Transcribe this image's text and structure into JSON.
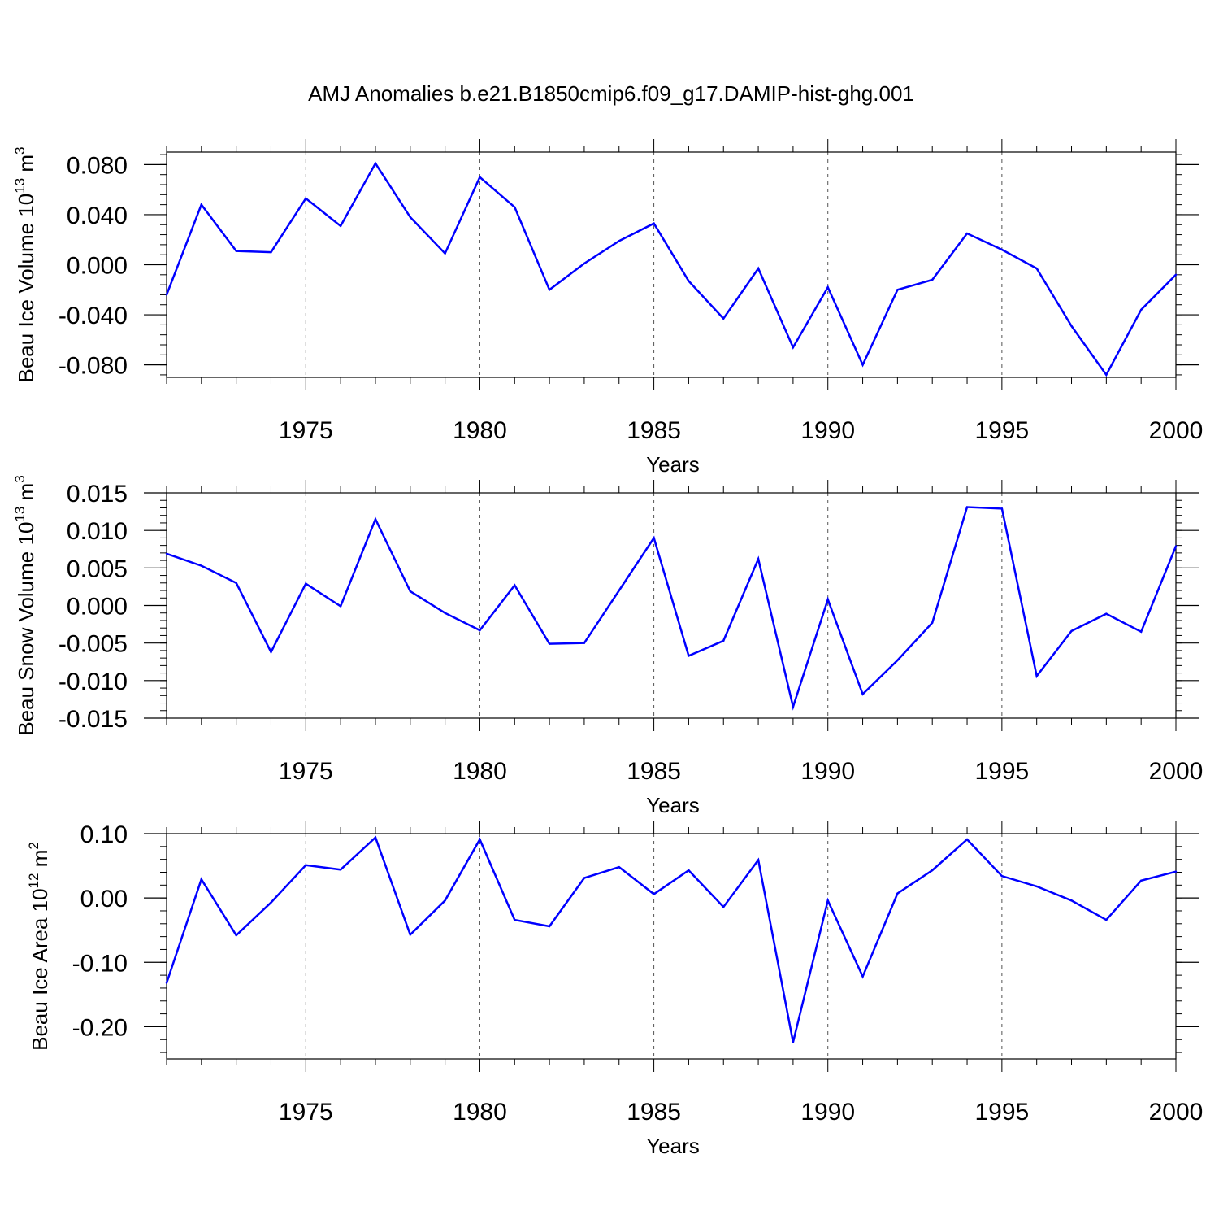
{
  "title": "AMJ Anomalies b.e21.B1850cmip6.f09_g17.DAMIP-hist-ghg.001",
  "colors": {
    "line": "#0000ff",
    "axis": "#000000",
    "grid": "#555555"
  },
  "chart_data": [
    {
      "type": "line",
      "ylabel_main": "Beau Ice Volume 10",
      "ylabel_exp": "13",
      "ylabel_unit": " m",
      "ylabel_unit_exp": "3",
      "xlabel": "Years",
      "xlim": [
        1971,
        2000
      ],
      "ylim": [
        -0.09,
        0.09
      ],
      "yticks": [
        -0.08,
        -0.04,
        0.0,
        0.04,
        0.08
      ],
      "ytick_labels": [
        "-0.080",
        "-0.040",
        "0.000",
        "0.040",
        "0.080"
      ],
      "yminor_step": 0.008,
      "xticks": [
        1975,
        1980,
        1985,
        1990,
        1995,
        2000
      ],
      "xtick_labels": [
        "1975",
        "1980",
        "1985",
        "1990",
        "1995",
        "2000"
      ],
      "grid_x": true,
      "x": [
        1971,
        1972,
        1973,
        1974,
        1975,
        1976,
        1977,
        1978,
        1979,
        1980,
        1981,
        1982,
        1983,
        1984,
        1985,
        1986,
        1987,
        1988,
        1989,
        1990,
        1991,
        1992,
        1993,
        1994,
        1995,
        1996,
        1997,
        1998,
        1999,
        2000
      ],
      "series": [
        {
          "name": "Beau Ice Volume",
          "values": [
            -0.024,
            0.048,
            0.011,
            0.01,
            0.053,
            0.031,
            0.081,
            0.038,
            0.009,
            0.07,
            0.046,
            -0.02,
            0.001,
            0.019,
            0.033,
            -0.013,
            -0.043,
            -0.003,
            -0.066,
            -0.018,
            -0.08,
            -0.02,
            -0.012,
            0.025,
            0.012,
            -0.003,
            -0.049,
            -0.088,
            -0.036,
            -0.008
          ]
        }
      ]
    },
    {
      "type": "line",
      "ylabel_main": "Beau Snow Volume 10",
      "ylabel_exp": "13",
      "ylabel_unit": " m",
      "ylabel_unit_exp": "3",
      "xlabel": "Years",
      "xlim": [
        1971,
        2000
      ],
      "ylim": [
        -0.015,
        0.015
      ],
      "yticks": [
        -0.015,
        -0.01,
        -0.005,
        0.0,
        0.005,
        0.01,
        0.015
      ],
      "ytick_labels": [
        "-0.015",
        "-0.010",
        "-0.005",
        "0.000",
        "0.005",
        "0.010",
        "0.015"
      ],
      "yminor_step": 0.001,
      "xticks": [
        1975,
        1980,
        1985,
        1990,
        1995,
        2000
      ],
      "xtick_labels": [
        "1975",
        "1980",
        "1985",
        "1990",
        "1995",
        "2000"
      ],
      "grid_x": true,
      "x": [
        1971,
        1972,
        1973,
        1974,
        1975,
        1976,
        1977,
        1978,
        1979,
        1980,
        1981,
        1982,
        1983,
        1984,
        1985,
        1986,
        1987,
        1988,
        1989,
        1990,
        1991,
        1992,
        1993,
        1994,
        1995,
        1996,
        1997,
        1998,
        1999,
        2000
      ],
      "series": [
        {
          "name": "Beau Snow Volume",
          "values": [
            0.0069,
            0.0053,
            0.003,
            -0.0062,
            0.0029,
            -0.0001,
            0.0115,
            0.0019,
            -0.001,
            -0.0033,
            0.0027,
            -0.0051,
            -0.005,
            0.002,
            0.009,
            -0.0067,
            -0.0047,
            0.0062,
            -0.0135,
            0.0008,
            -0.0118,
            -0.0073,
            -0.0023,
            0.0131,
            0.0129,
            -0.0094,
            -0.0034,
            -0.0011,
            -0.0035,
            0.0079
          ]
        }
      ]
    },
    {
      "type": "line",
      "ylabel_main": "Beau Ice Area 10",
      "ylabel_exp": "12",
      "ylabel_unit": " m",
      "ylabel_unit_exp": "2",
      "xlabel": "Years",
      "xlim": [
        1971,
        2000
      ],
      "ylim": [
        -0.25,
        0.1
      ],
      "yticks": [
        -0.2,
        -0.1,
        0.0,
        0.1
      ],
      "ytick_labels": [
        "-0.20",
        "-0.10",
        "0.00",
        "0.10"
      ],
      "yminor_step": 0.02,
      "xticks": [
        1975,
        1980,
        1985,
        1990,
        1995,
        2000
      ],
      "xtick_labels": [
        "1975",
        "1980",
        "1985",
        "1990",
        "1995",
        "2000"
      ],
      "grid_x": true,
      "x": [
        1971,
        1972,
        1973,
        1974,
        1975,
        1976,
        1977,
        1978,
        1979,
        1980,
        1981,
        1982,
        1983,
        1984,
        1985,
        1986,
        1987,
        1988,
        1989,
        1990,
        1991,
        1992,
        1993,
        1994,
        1995,
        1996,
        1997,
        1998,
        1999,
        2000
      ],
      "series": [
        {
          "name": "Beau Ice Area",
          "values": [
            -0.132,
            0.029,
            -0.058,
            -0.007,
            0.051,
            0.044,
            0.094,
            -0.057,
            -0.004,
            0.091,
            -0.034,
            -0.044,
            0.031,
            0.048,
            0.006,
            0.043,
            -0.014,
            0.059,
            -0.224,
            -0.004,
            -0.122,
            0.007,
            0.043,
            0.091,
            0.034,
            0.018,
            -0.004,
            -0.034,
            0.027,
            0.041
          ]
        }
      ]
    }
  ]
}
